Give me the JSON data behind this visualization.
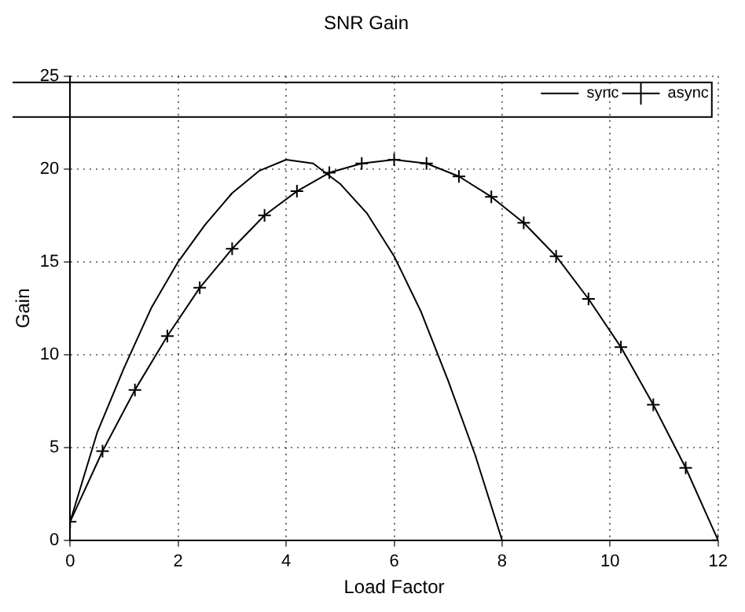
{
  "chart_data": {
    "type": "line",
    "title": "SNR Gain",
    "xlabel": "Load Factor",
    "ylabel": "Gain",
    "xlim": [
      0,
      12
    ],
    "xticks": [
      0,
      2,
      4,
      6,
      8,
      10,
      12
    ],
    "ylim": [
      0,
      25
    ],
    "yticks": [
      0,
      5,
      10,
      15,
      20,
      25
    ],
    "grid": true,
    "legend": "top right",
    "line_style": "solid",
    "series": [
      {
        "name": "sync",
        "color": "#000000",
        "marker": "none",
        "x": [
          0,
          0.5,
          1,
          1.5,
          2,
          2.5,
          3,
          3.5,
          4,
          4.5,
          5,
          5.5,
          6,
          6.5,
          7,
          7.5,
          8
        ],
        "values": [
          1,
          5.8,
          9.3,
          12.5,
          15,
          17,
          18.7,
          19.9,
          20.5,
          20.3,
          19.2,
          17.6,
          15.3,
          12.3,
          8.6,
          4.6,
          0
        ]
      },
      {
        "name": "async",
        "color": "#000000",
        "marker": "cross",
        "x": [
          0,
          0.6,
          1.2,
          1.8,
          2.4,
          3,
          3.6,
          4.2,
          4.8,
          5.4,
          6,
          6.6,
          7.2,
          7.8,
          8.4,
          9,
          9.6,
          10.2,
          10.8,
          11.4,
          12
        ],
        "values": [
          1,
          4.8,
          8.1,
          11,
          13.6,
          15.7,
          17.5,
          18.8,
          19.8,
          20.3,
          20.5,
          20.3,
          19.6,
          18.5,
          17.1,
          15.3,
          13,
          10.4,
          7.3,
          3.9,
          0
        ]
      }
    ]
  }
}
